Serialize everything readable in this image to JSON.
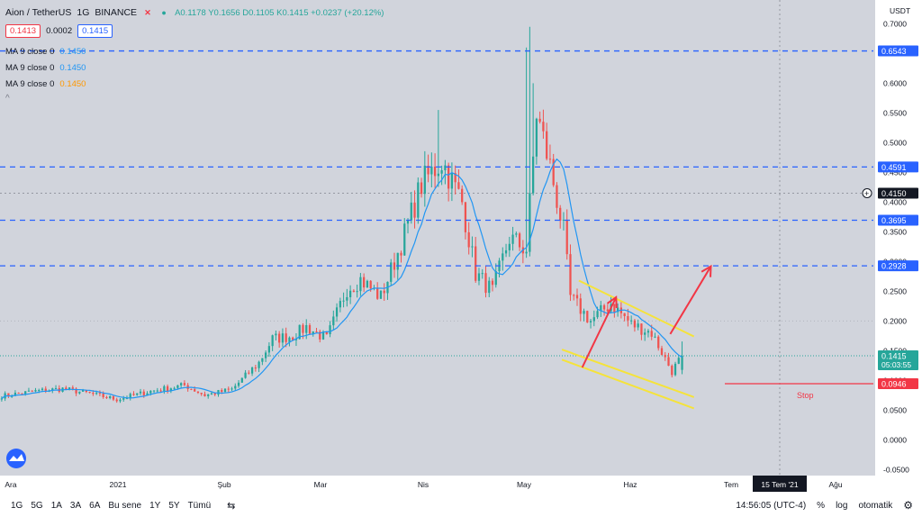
{
  "header": {
    "symbol": "Aion / TetherUS",
    "interval": "1G",
    "exchange": "BINANCE",
    "ohlc": "A0.1178  Y0.1656  D0.1105  K0.1415  +0.0237 (+20.12%)",
    "bid": "0.1413",
    "spread": "0.0002",
    "ask": "0.1415"
  },
  "indicators": [
    {
      "label": "MA 9 close 0",
      "value": "0.1450",
      "color": "#2196f3"
    },
    {
      "label": "MA 9 close 0",
      "value": "0.1450",
      "color": "#2196f3"
    },
    {
      "label": "MA 9 close 0",
      "value": "0.1450",
      "color": "#ff9800"
    }
  ],
  "colors": {
    "up": "#26a69a",
    "down": "#ef5350",
    "ma": "#2196f3",
    "hline": "#2962ff",
    "channel": "#f5e33a",
    "arrow": "#f23645",
    "stop": "#f23645"
  },
  "chart_data": {
    "type": "candlestick",
    "y_axis_unit": "USDT",
    "ylim": [
      -0.06,
      0.74
    ],
    "y_ticks": [
      "0.7000",
      "0.6500",
      "0.6000",
      "0.5500",
      "0.5000",
      "0.4500",
      "0.4000",
      "0.3500",
      "0.3000",
      "0.2500",
      "0.2000",
      "0.1500",
      "0.1000",
      "0.0500",
      "0.0000",
      "-0.0500"
    ],
    "x_ticks": [
      "Ara",
      "2021",
      "Şub",
      "Mar",
      "Nis",
      "May",
      "Haz",
      "Tem",
      "15 Tem '21",
      "Ağu"
    ],
    "price_labels": [
      {
        "value": 0.6543,
        "text": "0.6543",
        "kind": "hline"
      },
      {
        "value": 0.4591,
        "text": "0.4591",
        "kind": "hline"
      },
      {
        "value": 0.415,
        "text": "0.4150",
        "kind": "crosshair"
      },
      {
        "value": 0.3695,
        "text": "0.3695",
        "kind": "hline"
      },
      {
        "value": 0.2928,
        "text": "0.2928",
        "kind": "hline"
      },
      {
        "value": 0.1415,
        "text": "0.1415",
        "kind": "last",
        "countdown": "05:03:55"
      },
      {
        "value": 0.0946,
        "text": "0.0946",
        "kind": "stop"
      }
    ],
    "annotations": [
      {
        "text": "Stop",
        "x_index": 230,
        "y": 0.066
      }
    ],
    "channel_upper": [
      [
        171,
        0.268
      ],
      [
        205,
        0.174
      ]
    ],
    "channel_lower_1": [
      [
        166,
        0.152
      ],
      [
        205,
        0.072
      ]
    ],
    "channel_lower_2": [
      [
        166,
        0.135
      ],
      [
        205,
        0.053
      ]
    ],
    "arrows": [
      {
        "from": [
          172,
          0.122
        ],
        "to": [
          182,
          0.24
        ]
      },
      {
        "from": [
          198,
          0.178
        ],
        "to": [
          210,
          0.292
        ]
      }
    ],
    "pivots": [
      [
        0,
        0.074
      ],
      [
        10,
        0.082
      ],
      [
        18,
        0.086
      ],
      [
        26,
        0.078
      ],
      [
        34,
        0.068
      ],
      [
        44,
        0.082
      ],
      [
        54,
        0.092
      ],
      [
        60,
        0.075
      ],
      [
        68,
        0.085
      ],
      [
        76,
        0.13
      ],
      [
        80,
        0.17
      ],
      [
        86,
        0.175
      ],
      [
        90,
        0.19
      ],
      [
        96,
        0.17
      ],
      [
        102,
        0.255
      ],
      [
        106,
        0.27
      ],
      [
        112,
        0.24
      ],
      [
        118,
        0.33
      ],
      [
        124,
        0.43
      ],
      [
        130,
        0.47
      ],
      [
        136,
        0.4
      ],
      [
        140,
        0.28
      ],
      [
        145,
        0.25
      ],
      [
        150,
        0.34
      ],
      [
        155,
        0.32
      ],
      [
        158,
        0.55
      ],
      [
        162,
        0.46
      ],
      [
        166,
        0.35
      ],
      [
        168,
        0.24
      ],
      [
        174,
        0.2
      ],
      [
        180,
        0.23
      ],
      [
        186,
        0.195
      ],
      [
        192,
        0.18
      ],
      [
        198,
        0.115
      ],
      [
        201,
        0.142
      ]
    ],
    "last_index": 201,
    "x_total": 262
  },
  "bottom": {
    "ranges": [
      "1G",
      "5G",
      "1A",
      "3A",
      "6A",
      "Bu sene",
      "1Y",
      "5Y",
      "Tümü"
    ],
    "time": "14:56:05 (UTC-4)",
    "percent": "%",
    "log": "log",
    "auto": "otomatik"
  }
}
